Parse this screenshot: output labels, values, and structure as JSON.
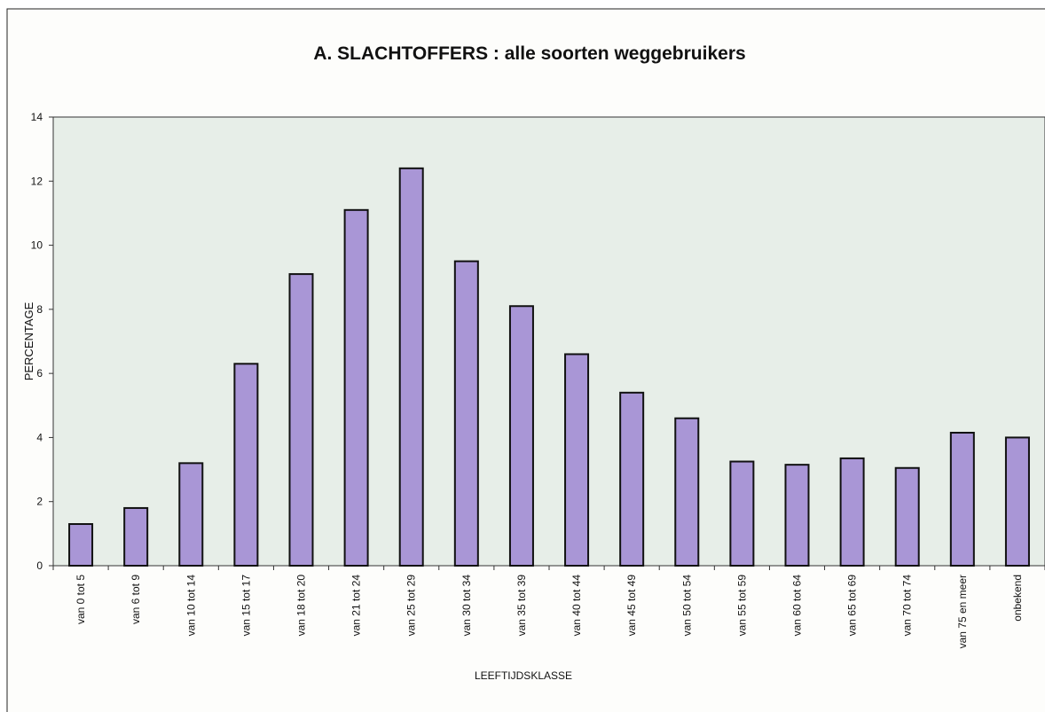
{
  "chart_data": {
    "type": "bar",
    "title": "A. SLACHTOFFERS : alle soorten weggebruikers",
    "xlabel": "LEEFTIJDSKLASSE",
    "ylabel": "PERCENTAGE",
    "categories": [
      "van 0 tot 5",
      "van 6 tot 9",
      "van 10 tot 14",
      "van 15 tot 17",
      "van 18 tot 20",
      "van 21 tot 24",
      "van 25 tot 29",
      "van 30 tot 34",
      "van 35 tot 39",
      "van 40 tot 44",
      "van 45 tot 49",
      "van 50 tot 54",
      "van 55 tot 59",
      "van 60 tot 64",
      "van 65 tot 69",
      "van 70 tot 74",
      "van 75 en meer",
      "onbekend"
    ],
    "values": [
      1.3,
      1.8,
      3.2,
      6.3,
      9.1,
      11.1,
      12.4,
      9.5,
      8.1,
      6.6,
      5.4,
      4.6,
      3.25,
      3.15,
      3.35,
      3.05,
      4.15,
      4.0
    ],
    "color": "#a996d6",
    "ylim": [
      0,
      14
    ],
    "yticks": [
      0,
      2,
      4,
      6,
      8,
      10,
      12,
      14
    ]
  }
}
